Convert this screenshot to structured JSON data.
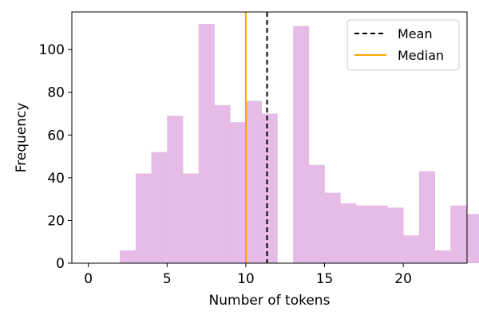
{
  "chart_data": {
    "type": "bar",
    "title": "",
    "xlabel": "Number of tokens",
    "ylabel": "Frequency",
    "xlim": [
      -1.05,
      24.05
    ],
    "ylim": [
      0,
      117.6
    ],
    "xticks": [
      0,
      5,
      10,
      15,
      20
    ],
    "yticks": [
      0,
      20,
      40,
      60,
      80,
      100
    ],
    "bar_color": "#e6bbe6",
    "bins": {
      "start": 2,
      "width": 1,
      "counts": [
        6,
        42,
        52,
        69,
        42,
        112,
        74,
        66,
        76,
        70,
        0,
        111,
        46,
        33,
        28,
        27,
        27,
        26,
        13,
        43,
        6,
        27,
        23
      ]
    },
    "lines": [
      {
        "name": "Mean",
        "x": 11.35,
        "color": "#000000",
        "style": "dashed"
      },
      {
        "name": "Median",
        "x": 10,
        "color": "#ffa500",
        "style": "solid"
      }
    ],
    "legend": {
      "position": "top-right",
      "entries": [
        "Mean",
        "Median"
      ]
    },
    "grid": false
  }
}
